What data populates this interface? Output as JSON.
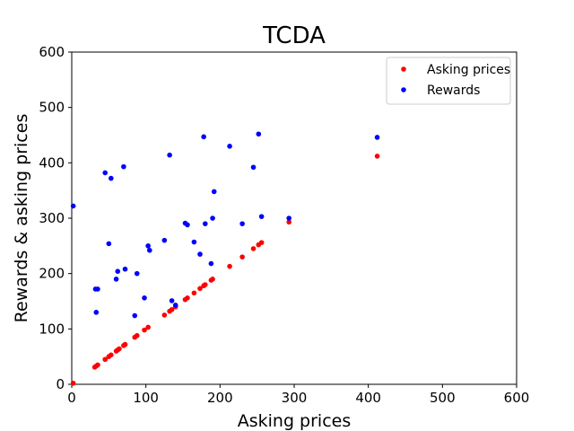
{
  "chart_data": {
    "type": "scatter",
    "title": "TCDA",
    "xlabel": "Asking prices",
    "ylabel": "Rewards & asking prices",
    "xlim": [
      0,
      600
    ],
    "ylim": [
      0,
      600
    ],
    "xticks": [
      0,
      100,
      200,
      300,
      400,
      500,
      600
    ],
    "yticks": [
      0,
      100,
      200,
      300,
      400,
      500,
      600
    ],
    "grid": false,
    "legend_position": "top-right",
    "series": [
      {
        "name": "Asking prices",
        "color": "#ff0000",
        "points": [
          [
            2,
            2
          ],
          [
            31,
            31
          ],
          [
            33,
            33
          ],
          [
            35,
            35
          ],
          [
            45,
            45
          ],
          [
            50,
            50
          ],
          [
            53,
            53
          ],
          [
            60,
            60
          ],
          [
            62,
            62
          ],
          [
            64,
            64
          ],
          [
            70,
            70
          ],
          [
            72,
            72
          ],
          [
            85,
            85
          ],
          [
            88,
            88
          ],
          [
            98,
            98
          ],
          [
            103,
            103
          ],
          [
            125,
            125
          ],
          [
            132,
            132
          ],
          [
            135,
            135
          ],
          [
            140,
            140
          ],
          [
            153,
            153
          ],
          [
            156,
            156
          ],
          [
            165,
            165
          ],
          [
            173,
            173
          ],
          [
            178,
            178
          ],
          [
            180,
            180
          ],
          [
            188,
            188
          ],
          [
            190,
            190
          ],
          [
            213,
            213
          ],
          [
            230,
            230
          ],
          [
            245,
            245
          ],
          [
            252,
            252
          ],
          [
            256,
            256
          ],
          [
            293,
            293
          ],
          [
            412,
            412
          ]
        ]
      },
      {
        "name": "Rewards",
        "color": "#0000ff",
        "points": [
          [
            2,
            322
          ],
          [
            32,
            172
          ],
          [
            33,
            130
          ],
          [
            35,
            172
          ],
          [
            45,
            382
          ],
          [
            50,
            254
          ],
          [
            53,
            372
          ],
          [
            60,
            190
          ],
          [
            62,
            204
          ],
          [
            70,
            393
          ],
          [
            72,
            208
          ],
          [
            85,
            124
          ],
          [
            88,
            200
          ],
          [
            98,
            156
          ],
          [
            103,
            250
          ],
          [
            105,
            242
          ],
          [
            125,
            260
          ],
          [
            132,
            414
          ],
          [
            135,
            151
          ],
          [
            140,
            143
          ],
          [
            153,
            291
          ],
          [
            156,
            288
          ],
          [
            165,
            257
          ],
          [
            173,
            235
          ],
          [
            178,
            447
          ],
          [
            180,
            290
          ],
          [
            188,
            218
          ],
          [
            190,
            300
          ],
          [
            192,
            348
          ],
          [
            213,
            430
          ],
          [
            230,
            290
          ],
          [
            245,
            392
          ],
          [
            252,
            452
          ],
          [
            256,
            303
          ],
          [
            293,
            300
          ],
          [
            412,
            446
          ]
        ]
      }
    ]
  }
}
